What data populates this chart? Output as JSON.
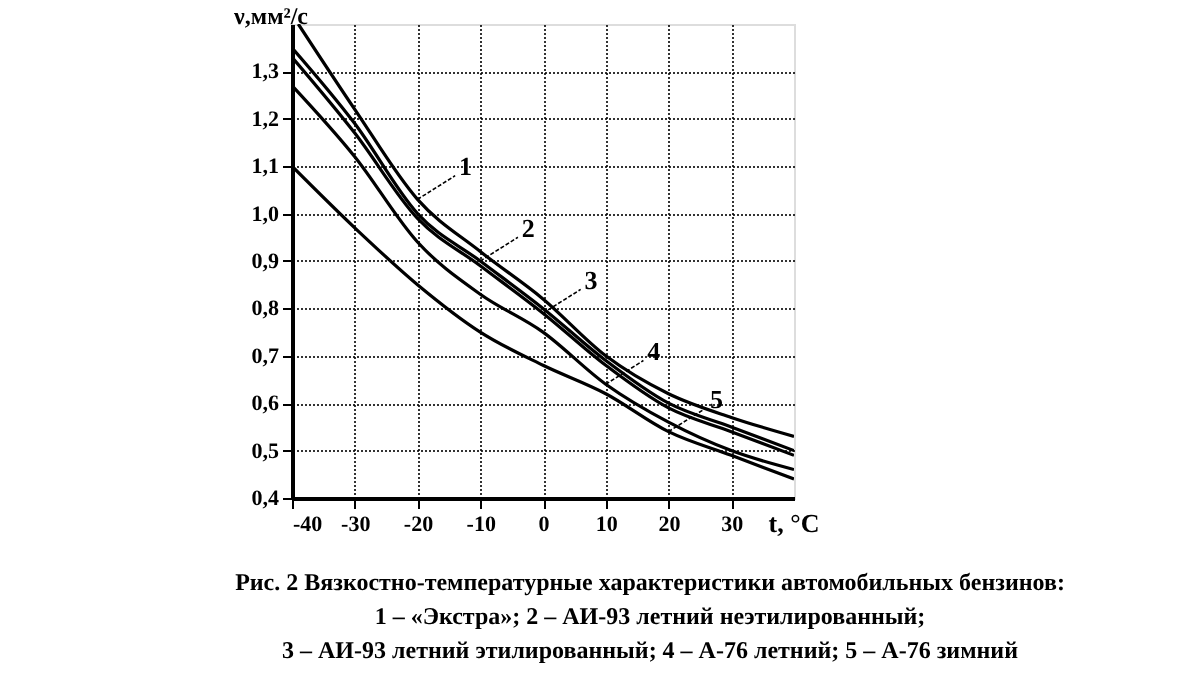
{
  "chart_data": {
    "type": "line",
    "xlabel": "t, °C",
    "ylabel": "ν,мм²/с",
    "x": [
      -40,
      -30,
      -20,
      -10,
      0,
      10,
      20,
      30,
      40
    ],
    "series": [
      {
        "color": "#000000",
        "x": [
          -39,
          -30,
          -20,
          -10,
          0,
          10,
          20,
          30,
          40
        ],
        "values": [
          1.4,
          1.22,
          1.03,
          0.92,
          0.82,
          0.7,
          0.62,
          0.57,
          0.53
        ]
      },
      {
        "color": "#000000",
        "values": [
          1.35,
          1.19,
          1.0,
          0.9,
          0.8,
          0.69,
          0.6,
          0.55,
          0.5
        ]
      },
      {
        "color": "#000000",
        "values": [
          1.33,
          1.17,
          0.99,
          0.89,
          0.79,
          0.68,
          0.59,
          0.54,
          0.49
        ]
      },
      {
        "color": "#000000",
        "values": [
          1.27,
          1.12,
          0.94,
          0.83,
          0.75,
          0.64,
          0.56,
          0.5,
          0.46
        ]
      },
      {
        "color": "#000000",
        "values": [
          1.1,
          0.97,
          0.85,
          0.75,
          0.68,
          0.62,
          0.54,
          0.49,
          0.44
        ]
      }
    ],
    "xlim": [
      -40,
      40
    ],
    "xticks": [
      -40,
      -30,
      -20,
      -10,
      0,
      10,
      20,
      30
    ],
    "ylim": [
      0.4,
      1.4
    ],
    "yticks": [
      {
        "value": 0.4,
        "label": "0,4"
      },
      {
        "value": 0.5,
        "label": "0,5"
      },
      {
        "value": 0.6,
        "label": "0,6"
      },
      {
        "value": 0.7,
        "label": "0,7"
      },
      {
        "value": 0.8,
        "label": "0,8"
      },
      {
        "value": 0.9,
        "label": "0,9"
      },
      {
        "value": 1.0,
        "label": "1,0"
      },
      {
        "value": 1.1,
        "label": "1,1"
      },
      {
        "value": 1.2,
        "label": "1,2"
      },
      {
        "value": 1.3,
        "label": "1,3"
      }
    ],
    "grid": true,
    "marker": "none",
    "line_style": "solid",
    "annotations": [
      {
        "text": "1",
        "x": -20,
        "y": 1.03
      },
      {
        "text": "2",
        "x": -10,
        "y": 0.9
      },
      {
        "text": "3",
        "x": 0,
        "y": 0.79
      },
      {
        "text": "4",
        "x": 10,
        "y": 0.64
      },
      {
        "text": "5",
        "x": 20,
        "y": 0.54
      },
      "Рис. 2  Вязкостно-температурные характеристики  автомобильных бензинов:",
      "1 – «Экстра»;  2 – АИ-93 летний неэтилированный;",
      "3 – АИ-93 летний этилированный;  4 – А-76 летний; 5 – А-76 зимний"
    ]
  }
}
